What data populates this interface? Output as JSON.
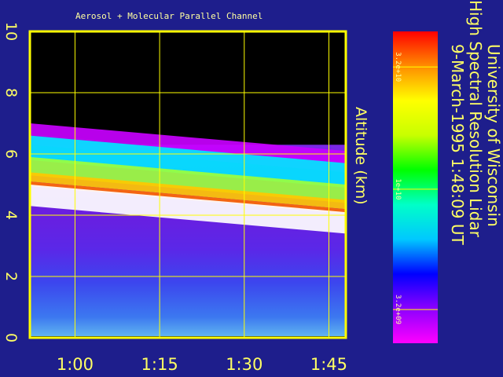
{
  "chart_data": {
    "type": "heatmap",
    "title": "Aerosol + Molecular Parallel Channel",
    "ylabel": "Altitude (km)",
    "xlabel": "",
    "ylim": [
      0,
      10
    ],
    "xlim": [
      "0:52",
      "1:48"
    ],
    "y_ticks": [
      "0",
      "2",
      "4",
      "6",
      "8",
      "10"
    ],
    "x_ticks": [
      "1:00",
      "1:15",
      "1:30",
      "1:45"
    ],
    "grid": true,
    "colorbar": {
      "tick_labels": [
        "3.2e+09",
        "1e+10",
        "3.2e+10"
      ],
      "scale": "log",
      "colors": [
        "#ff00ff",
        "#8c00ff",
        "#0000ff",
        "#00c8ff",
        "#00ffc8",
        "#00ff00",
        "#c8ff00",
        "#ffff00",
        "#ff8c00",
        "#ff0000"
      ]
    },
    "features": {
      "molecular_layer_km": [
        0.0,
        4.3
      ],
      "aerosol_peak_km": [
        4.2,
        5.0
      ],
      "cloud_top_km": [
        5.5,
        7.0
      ],
      "no_signal_above_km": 6.3
    }
  },
  "annotation": {
    "line1": "University of Wisconsin",
    "line2": "High Spectral Resolution Lidar",
    "line3": "9-March-1995   1:48:09 UT"
  },
  "colors": {
    "background": "#1e1e8c",
    "frame": "#ffff00",
    "text": "#ffff64"
  }
}
